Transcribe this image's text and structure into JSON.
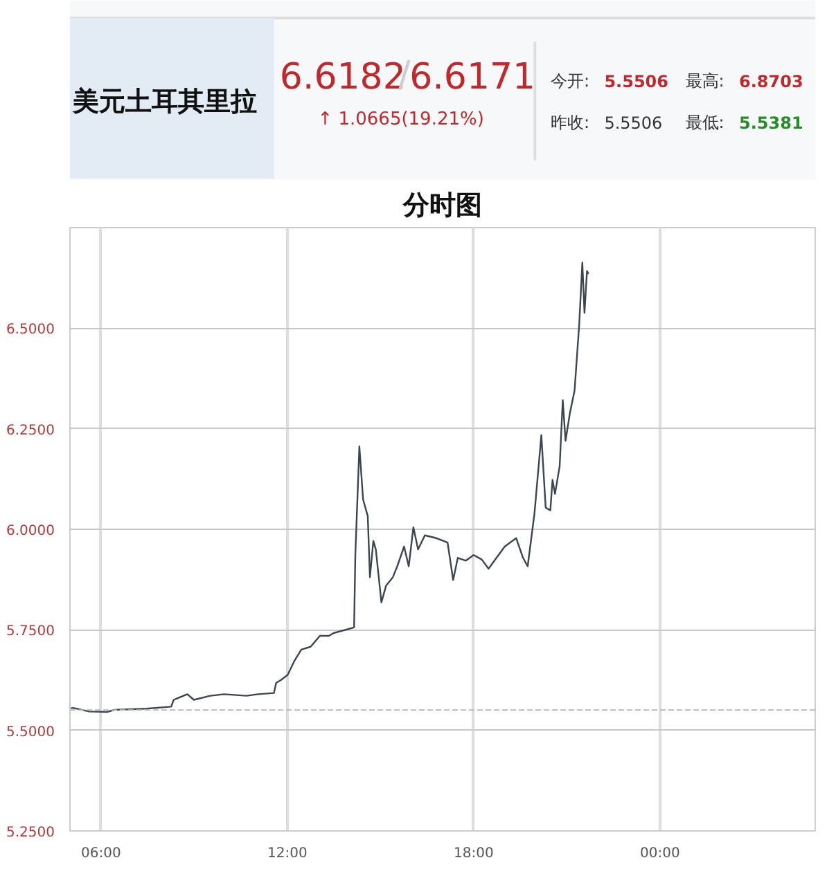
{
  "chart_data": [
    {
      "type": "other",
      "title": "美元土耳其里拉",
      "annotations": [
        "6.6182",
        "/",
        "6.6171",
        "↑ 1.0665(19.21%)",
        "今开:",
        "5.5506",
        "昨收:",
        "5.5506",
        "最高:",
        "6.8703",
        "最低:",
        "5.5381"
      ]
    },
    {
      "type": "line",
      "title": "分时图",
      "xlim": [
        5,
        29
      ],
      "ylim": [
        5.25,
        6.75
      ],
      "xticks": [
        {
          "value": 6,
          "label": "06:00"
        },
        {
          "value": 12,
          "label": "12:00"
        },
        {
          "value": 18,
          "label": "18:00"
        },
        {
          "value": 24,
          "label": "00:00"
        }
      ],
      "yticks": [
        {
          "value": 5.25,
          "label": "5.2500"
        },
        {
          "value": 5.5,
          "label": "5.5000"
        },
        {
          "value": 5.75,
          "label": "5.7500"
        },
        {
          "value": 6.0,
          "label": "6.0000"
        },
        {
          "value": 6.25,
          "label": "6.2500"
        },
        {
          "value": 6.5,
          "label": "6.5000"
        }
      ],
      "grid": true,
      "ref_lines": [
        {
          "axis": "y",
          "value": 5.5506,
          "label": null,
          "color": "#bbbbbb",
          "line_style": "dashed"
        }
      ],
      "series": [
        {
          "color": "#3c4650",
          "x": [
            5.03,
            5.1,
            5.62,
            6.21,
            6.43,
            7.46,
            8.26,
            8.34,
            8.78,
            8.99,
            9.52,
            9.96,
            10.69,
            11.05,
            11.57,
            11.64,
            11.79,
            12.01,
            12.23,
            12.45,
            12.75,
            13.05,
            13.34,
            13.49,
            14.15,
            14.19,
            14.32,
            14.44,
            14.59,
            14.66,
            14.77,
            14.85,
            15.03,
            15.18,
            15.4,
            15.54,
            15.76,
            15.91,
            16.06,
            16.21,
            16.43,
            16.8,
            17.16,
            17.34,
            17.49,
            17.75,
            18.0,
            18.26,
            18.48,
            19.0,
            19.37,
            19.59,
            19.74,
            19.96,
            20.18,
            20.32,
            20.47,
            20.54,
            20.62,
            20.77,
            20.87,
            20.96,
            21.1,
            21.25,
            21.4,
            21.5,
            21.57,
            21.65,
            21.7
          ],
          "values": [
            5.555,
            5.556,
            5.547,
            5.546,
            5.551,
            5.554,
            5.559,
            5.576,
            5.59,
            5.576,
            5.586,
            5.59,
            5.586,
            5.59,
            5.593,
            5.618,
            5.625,
            5.638,
            5.673,
            5.701,
            5.708,
            5.735,
            5.735,
            5.742,
            5.756,
            5.936,
            6.206,
            6.074,
            6.033,
            5.881,
            5.971,
            5.95,
            5.818,
            5.86,
            5.881,
            5.908,
            5.957,
            5.908,
            6.005,
            5.95,
            5.985,
            5.978,
            5.967,
            5.874,
            5.929,
            5.922,
            5.936,
            5.925,
            5.902,
            5.957,
            5.978,
            5.929,
            5.908,
            6.04,
            6.234,
            6.054,
            6.047,
            6.123,
            6.088,
            6.157,
            6.321,
            6.22,
            6.289,
            6.345,
            6.51,
            6.663,
            6.538,
            6.642,
            6.635
          ]
        }
      ]
    }
  ]
}
